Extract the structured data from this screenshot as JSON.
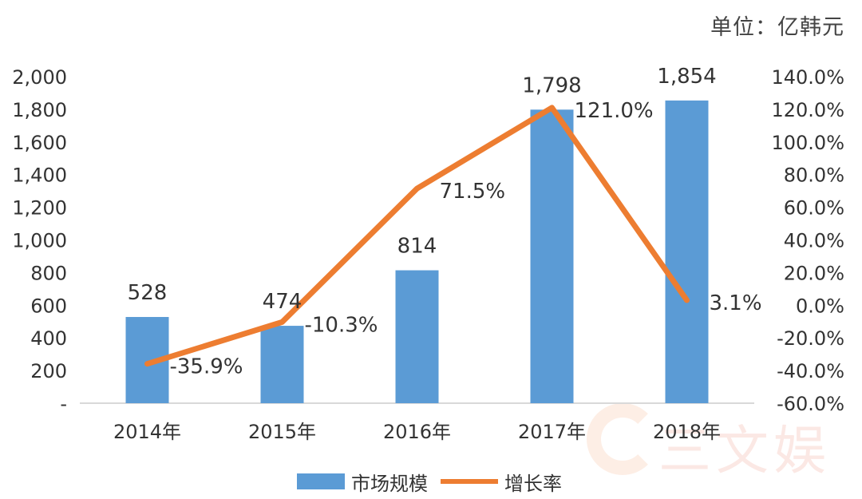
{
  "unit_label": "单位：亿韩元",
  "colors": {
    "bar": "#5b9bd5",
    "line": "#ed7d31",
    "axis": "#d9d9d9",
    "text": "#333333"
  },
  "watermark": {
    "text": "三文娱"
  },
  "legend": [
    {
      "label": "市场规模",
      "kind": "bar"
    },
    {
      "label": "增长率",
      "kind": "line"
    }
  ],
  "chart_data": {
    "type": "bar",
    "categories": [
      "2014年",
      "2015年",
      "2016年",
      "2017年",
      "2018年"
    ],
    "series": [
      {
        "name": "市场规模",
        "type": "bar",
        "axis": "left",
        "values": [
          528,
          474,
          814,
          1798,
          1854
        ],
        "labels": [
          "528",
          "474",
          "814",
          "1,798",
          "1,854"
        ]
      },
      {
        "name": "增长率",
        "type": "line",
        "axis": "right",
        "values": [
          -35.9,
          -10.3,
          71.5,
          121.0,
          3.1
        ],
        "labels": [
          "-35.9%",
          "-10.3%",
          "71.5%",
          "121.0%",
          "3.1%"
        ]
      }
    ],
    "y_left": {
      "ylim": [
        0,
        2000
      ],
      "ticks": [
        "-",
        "200",
        "400",
        "600",
        "800",
        "1,000",
        "1,200",
        "1,400",
        "1,600",
        "1,800",
        "2,000"
      ]
    },
    "y_right": {
      "ylim": [
        -60,
        140
      ],
      "ticks": [
        "-60.0%",
        "-40.0%",
        "-20.0%",
        "0.0%",
        "20.0%",
        "40.0%",
        "60.0%",
        "80.0%",
        "100.0%",
        "120.0%",
        "140.0%"
      ]
    },
    "grid": false,
    "legend_position": "bottom"
  }
}
